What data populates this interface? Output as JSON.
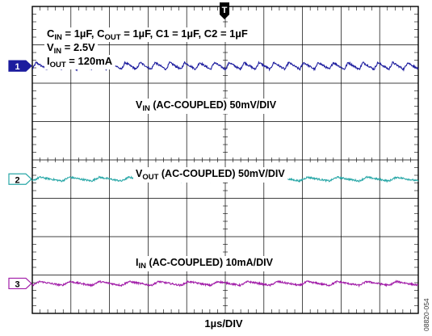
{
  "chart_data": {
    "type": "line",
    "title": "",
    "xlabel": "1µs/DIV",
    "ylabel": "",
    "grid": true,
    "x_divisions": 10,
    "y_divisions": 8,
    "x_unit_per_div": "1µs",
    "xlim_div": [
      0,
      10
    ],
    "ylim_div": [
      0,
      8
    ],
    "trigger_marker": "T",
    "conditions": [
      {
        "parts": [
          {
            "t": "C"
          },
          {
            "t": "IN",
            "sub": true
          },
          {
            "t": " = 1µF, C"
          },
          {
            "t": "OUT",
            "sub": true
          },
          {
            "t": " = 1µF, C1 = 1µF, C2 = 1µF"
          }
        ]
      },
      {
        "parts": [
          {
            "t": "V"
          },
          {
            "t": "IN",
            "sub": true
          },
          {
            "t": " = 2.5V"
          }
        ]
      },
      {
        "parts": [
          {
            "t": "I"
          },
          {
            "t": "OUT",
            "sub": true
          },
          {
            "t": " = 120mA"
          }
        ]
      }
    ],
    "series": [
      {
        "channel": "1",
        "color": "#1c1c9e",
        "label_parts": [
          {
            "t": "V"
          },
          {
            "t": "IN",
            "sub": true
          },
          {
            "t": " (AC-COUPLED) 50mV/DIV"
          }
        ],
        "baseline_div": 6.45,
        "ripple_period_div": 0.385,
        "ripple_amplitude_div": 0.09,
        "noise_div": 0.025
      },
      {
        "channel": "2",
        "color": "#2aa8a8",
        "label_parts": [
          {
            "t": "V"
          },
          {
            "t": "OUT",
            "sub": true
          },
          {
            "t": " (AC-COUPLED) 50mV/DIV"
          }
        ],
        "baseline_div": 3.5,
        "ripple_period_div": 0.77,
        "ripple_amplitude_div": 0.05,
        "noise_div": 0.022
      },
      {
        "channel": "3",
        "color": "#a11ca8",
        "label_parts": [
          {
            "t": "I"
          },
          {
            "t": "IN",
            "sub": true
          },
          {
            "t": " (AC-COUPLED) 10mA/DIV"
          }
        ],
        "baseline_div": 0.78,
        "ripple_period_div": 0.77,
        "ripple_amplitude_div": 0.05,
        "noise_div": 0.022
      }
    ]
  },
  "figure_id": "08820-054"
}
